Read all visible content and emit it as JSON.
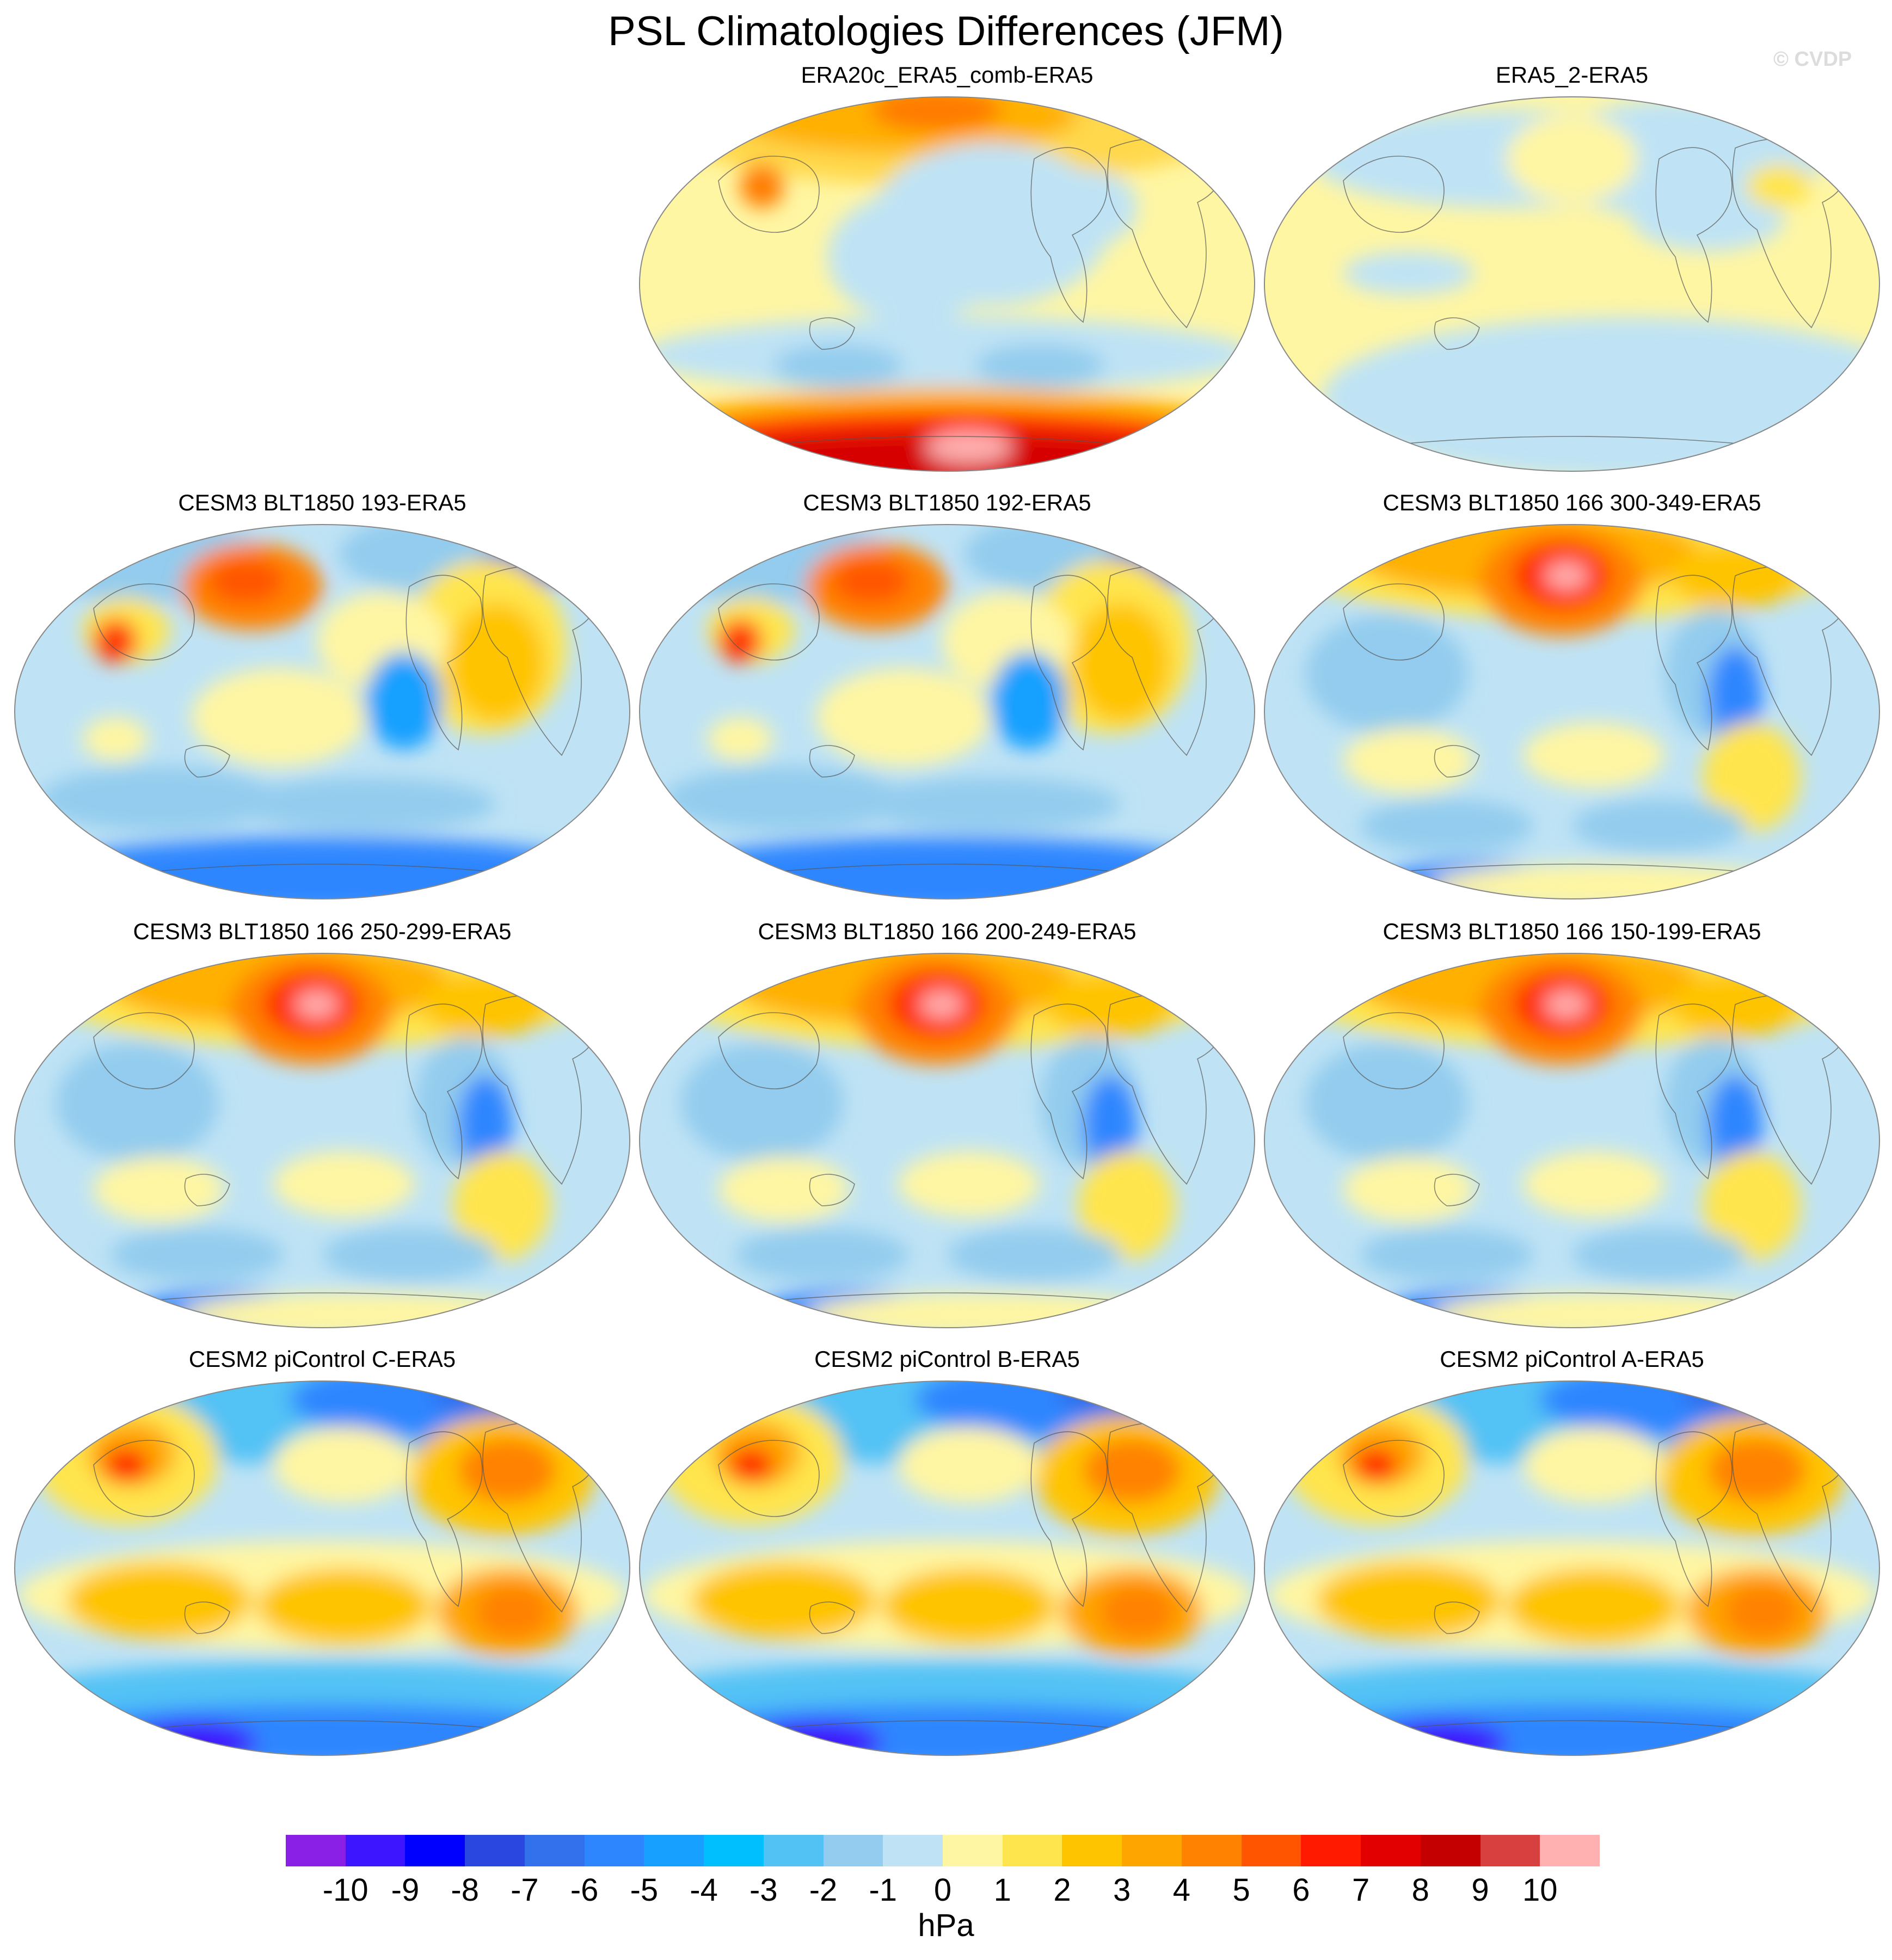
{
  "title": "PSL Climatologies Differences (JFM)",
  "watermark": "© CVDP",
  "panels": [
    {
      "title": "ERA20c_ERA5_comb-ERA5",
      "row": 0,
      "col": 1,
      "palette": [
        "#fff6a3",
        "#ffd84c",
        "#ffb000",
        "#ff7a00",
        "#ff3000",
        "#d60000",
        "#ffb0b0"
      ],
      "style": "era20c"
    },
    {
      "title": "ERA5_2-ERA5",
      "row": 0,
      "col": 2,
      "style": "era5_2"
    },
    {
      "title": "CESM3 BLT1850 193-ERA5",
      "row": 1,
      "col": 0,
      "style": "blt_a"
    },
    {
      "title": "CESM3 BLT1850 192-ERA5",
      "row": 1,
      "col": 1,
      "style": "blt_a"
    },
    {
      "title": "CESM3 BLT1850 166 300-349-ERA5",
      "row": 1,
      "col": 2,
      "style": "blt_b"
    },
    {
      "title": "CESM3 BLT1850 166 250-299-ERA5",
      "row": 2,
      "col": 0,
      "style": "blt_b"
    },
    {
      "title": "CESM3 BLT1850 166 200-249-ERA5",
      "row": 2,
      "col": 1,
      "style": "blt_b"
    },
    {
      "title": "CESM3 BLT1850 166 150-199-ERA5",
      "row": 2,
      "col": 2,
      "style": "blt_b"
    },
    {
      "title": "CESM2 piControl C-ERA5",
      "row": 3,
      "col": 0,
      "style": "cesm2"
    },
    {
      "title": "CESM2 piControl B-ERA5",
      "row": 3,
      "col": 1,
      "style": "cesm2"
    },
    {
      "title": "CESM2 piControl A-ERA5",
      "row": 3,
      "col": 2,
      "style": "cesm2"
    }
  ],
  "colorbar": {
    "colors": [
      "#8a1fe6",
      "#3d16ff",
      "#0000ff",
      "#2a48e0",
      "#3370ec",
      "#2e86ff",
      "#17a0ff",
      "#00bfff",
      "#52c2f5",
      "#93ccee",
      "#bfe3f5",
      "#fff6a3",
      "#ffe54d",
      "#ffc400",
      "#ffa500",
      "#ff8200",
      "#ff5500",
      "#ff1a00",
      "#e30000",
      "#c40000",
      "#d84040",
      "#ffb0b0"
    ],
    "labels": [
      "-10",
      "-9",
      "-8",
      "-7",
      "-6",
      "-5",
      "-4",
      "-3",
      "-2",
      "-1",
      "0",
      "1",
      "2",
      "3",
      "4",
      "5",
      "6",
      "7",
      "8",
      "9",
      "10"
    ],
    "unit": "hPa"
  }
}
